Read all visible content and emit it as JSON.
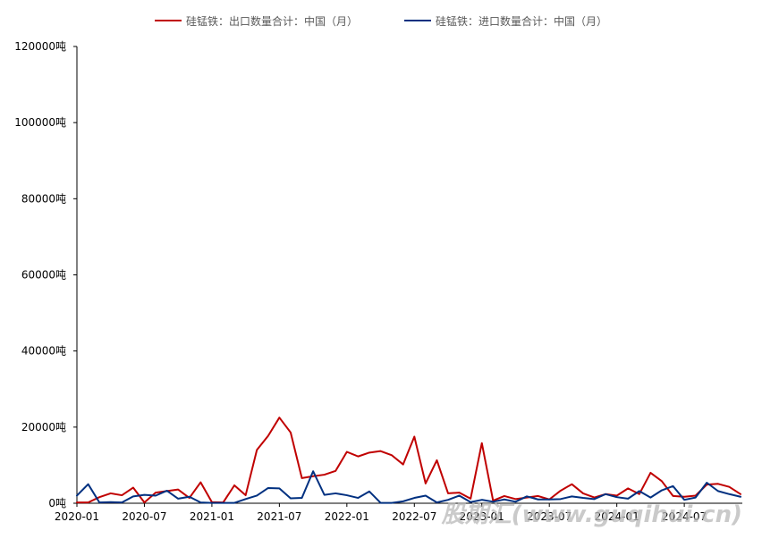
{
  "chart_data": {
    "type": "line",
    "title": "",
    "xlabel": "",
    "ylabel": "",
    "ylim": [
      0,
      120000
    ],
    "y_ticks": [
      0,
      20000,
      40000,
      60000,
      80000,
      100000,
      120000
    ],
    "y_tick_labels": [
      "0吨",
      "20000吨",
      "40000吨",
      "60000吨",
      "80000吨",
      "100000吨",
      "120000吨"
    ],
    "x_ticks": [
      "2020-01",
      "2020-07",
      "2021-01",
      "2021-07",
      "2022-01",
      "2022-07",
      "2023-01",
      "2023-07",
      "2024-01",
      "2024-07"
    ],
    "x": [
      "2020-01",
      "2020-02",
      "2020-03",
      "2020-04",
      "2020-05",
      "2020-06",
      "2020-07",
      "2020-08",
      "2020-09",
      "2020-10",
      "2020-11",
      "2020-12",
      "2021-01",
      "2021-02",
      "2021-03",
      "2021-04",
      "2021-05",
      "2021-06",
      "2021-07",
      "2021-08",
      "2021-09",
      "2021-10",
      "2021-11",
      "2021-12",
      "2022-01",
      "2022-02",
      "2022-03",
      "2022-04",
      "2022-05",
      "2022-06",
      "2022-07",
      "2022-08",
      "2022-09",
      "2022-10",
      "2022-11",
      "2022-12",
      "2023-01",
      "2023-02",
      "2023-03",
      "2023-04",
      "2023-05",
      "2023-06",
      "2023-07",
      "2023-08",
      "2023-09",
      "2023-10",
      "2023-11",
      "2023-12",
      "2024-01",
      "2024-02",
      "2024-03",
      "2024-04",
      "2024-05",
      "2024-06",
      "2024-07",
      "2024-08",
      "2024-09",
      "2024-10",
      "2024-11",
      "2024-12"
    ],
    "legend_position": "top",
    "grid": false,
    "series": [
      {
        "name": "硅锰铁：出口数量合计：中国（月）",
        "color": "#c00000",
        "values": [
          200,
          200,
          1600,
          2600,
          2100,
          4100,
          200,
          2800,
          3200,
          3600,
          1400,
          5500,
          300,
          200,
          4700,
          2100,
          14000,
          17700,
          22500,
          18600,
          6600,
          7100,
          7500,
          8500,
          13500,
          12300,
          13300,
          13700,
          12600,
          10200,
          17500,
          5200,
          11300,
          2600,
          2800,
          1200,
          15800,
          700,
          1900,
          1100,
          1500,
          1900,
          1000,
          3300,
          5000,
          2600,
          1500,
          2400,
          2000,
          3900,
          2400,
          8000,
          5800,
          1900,
          1700,
          2000,
          4900,
          5100,
          4300,
          2400
        ]
      },
      {
        "name": "硅锰铁：进口数量合计：中国（月）",
        "color": "#003080",
        "values": [
          2000,
          5000,
          200,
          300,
          200,
          1800,
          2200,
          2000,
          3300,
          1200,
          1700,
          200,
          100,
          100,
          100,
          1100,
          2000,
          4000,
          3900,
          1300,
          1400,
          8400,
          2200,
          2600,
          2100,
          1400,
          3100,
          100,
          100,
          500,
          1400,
          2000,
          200,
          900,
          2000,
          300,
          900,
          400,
          1000,
          400,
          1800,
          1000,
          1000,
          1100,
          1800,
          1400,
          1100,
          2400,
          1600,
          1200,
          3200,
          1500,
          3400,
          4500,
          900,
          1500,
          5400,
          3200,
          2400,
          1700
        ]
      }
    ]
  },
  "watermark": "股期汇(www.guqihui.cn)"
}
